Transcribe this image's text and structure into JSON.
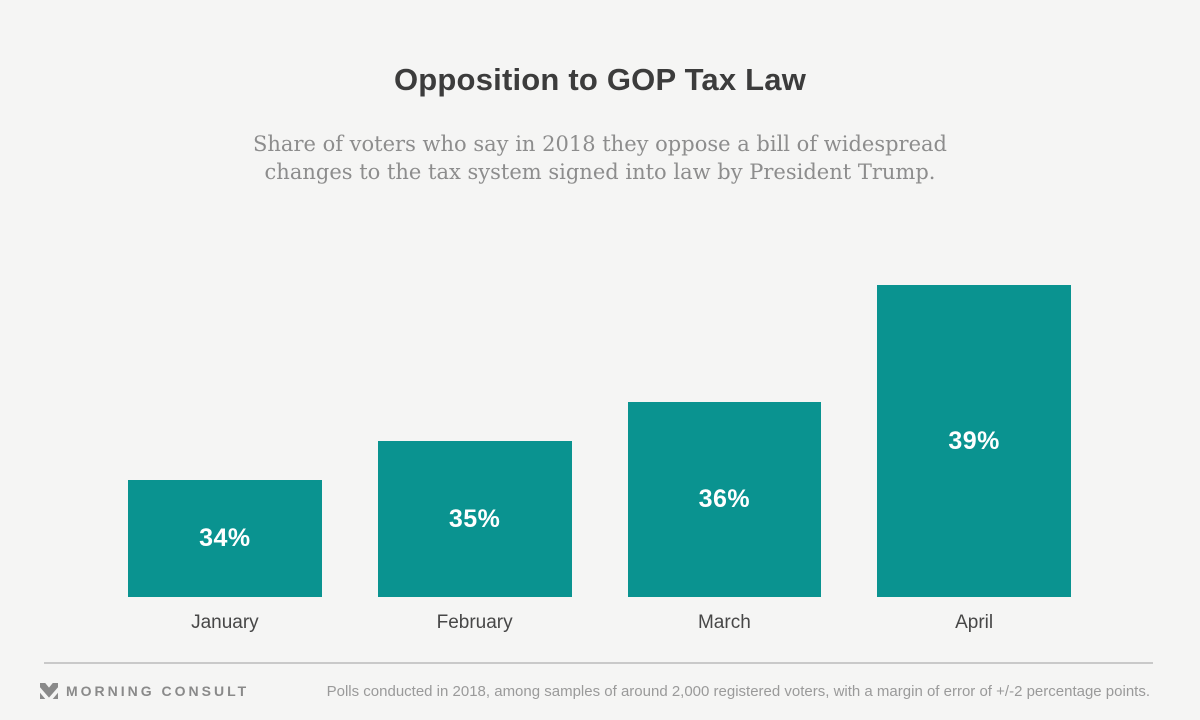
{
  "header": {
    "title": "Opposition to GOP Tax Law",
    "subtitle_lines": [
      "Share of voters who say in 2018 they oppose a bill of widespread",
      "changes to the tax system signed into law by President Trump."
    ]
  },
  "chart_data": {
    "type": "bar",
    "categories": [
      "January",
      "February",
      "March",
      "April"
    ],
    "values": [
      34,
      35,
      36,
      39
    ],
    "value_labels": [
      "34%",
      "35%",
      "36%",
      "39%"
    ],
    "title": "Opposition to GOP Tax Law",
    "xlabel": "",
    "ylabel": "",
    "ylim": [
      31,
      40
    ],
    "grid": false,
    "legend": "none",
    "bar_color": "#0a9390",
    "value_label_color": "#ffffff"
  },
  "footer": {
    "brand": "MORNING CONSULT",
    "note": "Polls conducted in 2018, among samples of around 2,000 registered voters, with a margin of error of +/-2 percentage points."
  },
  "colors": {
    "background": "#f5f5f4",
    "title_text": "#3c3c3c",
    "subtitle_text": "#8d8d8d",
    "bar_teal": "#0a9390",
    "axis_label_text": "#474747",
    "divider": "#c9c9c9",
    "brand_gray": "#8a8a8a",
    "note_gray": "#9a9a9a"
  }
}
